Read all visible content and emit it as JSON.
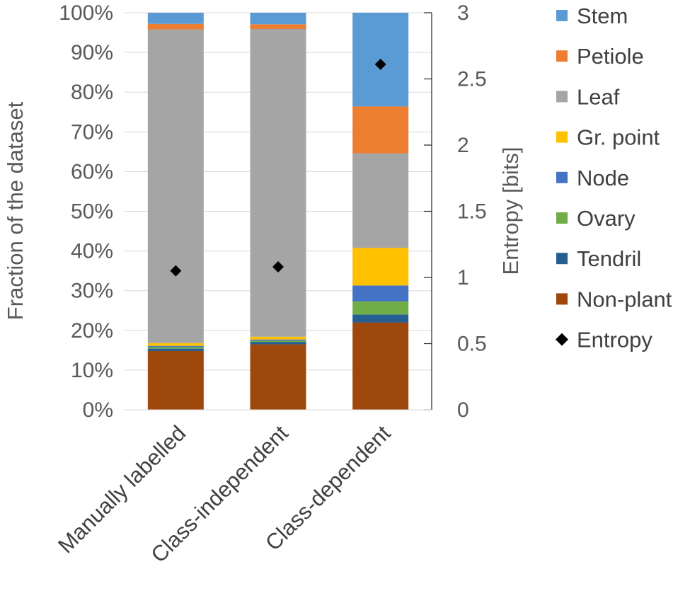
{
  "chart_data": {
    "type": "bar",
    "stacked": true,
    "categories": [
      "Manually labelled",
      "Class-independent",
      "Class-dependent"
    ],
    "ylabel": "Fraction of the dataset",
    "y2label": "Entropy [bits]",
    "ylim": [
      0,
      100
    ],
    "y2lim": [
      0,
      3
    ],
    "y_ticks": [
      "0%",
      "10%",
      "20%",
      "30%",
      "40%",
      "50%",
      "60%",
      "70%",
      "80%",
      "90%",
      "100%"
    ],
    "y2_ticks": [
      "0",
      "0.5",
      "1",
      "1.5",
      "2",
      "2.5",
      "3"
    ],
    "series": [
      {
        "name": "Non-plant",
        "color": "#9e480e",
        "values": [
          14.8,
          16.5,
          22.0
        ]
      },
      {
        "name": "Tendril",
        "color": "#255e91",
        "values": [
          0.6,
          0.6,
          2.0
        ]
      },
      {
        "name": "Ovary",
        "color": "#70ad47",
        "values": [
          0.4,
          0.3,
          3.3
        ]
      },
      {
        "name": "Node",
        "color": "#4472c4",
        "values": [
          0.3,
          0.3,
          4.0
        ]
      },
      {
        "name": "Gr. point",
        "color": "#ffc000",
        "values": [
          0.7,
          0.7,
          9.5
        ]
      },
      {
        "name": "Leaf",
        "color": "#a5a5a5",
        "values": [
          79.0,
          77.5,
          23.8
        ]
      },
      {
        "name": "Petiole",
        "color": "#ed7d31",
        "values": [
          1.4,
          1.2,
          11.8
        ]
      },
      {
        "name": "Stem",
        "color": "#5b9bd5",
        "values": [
          2.8,
          2.9,
          23.6
        ]
      }
    ],
    "entropy": {
      "name": "Entropy",
      "color": "#000000",
      "values": [
        1.05,
        1.08,
        2.61
      ]
    },
    "legend": [
      "Stem",
      "Petiole",
      "Leaf",
      "Gr. point",
      "Node",
      "Ovary",
      "Tendril",
      "Non-plant",
      "Entropy"
    ],
    "legend_position": "right"
  }
}
